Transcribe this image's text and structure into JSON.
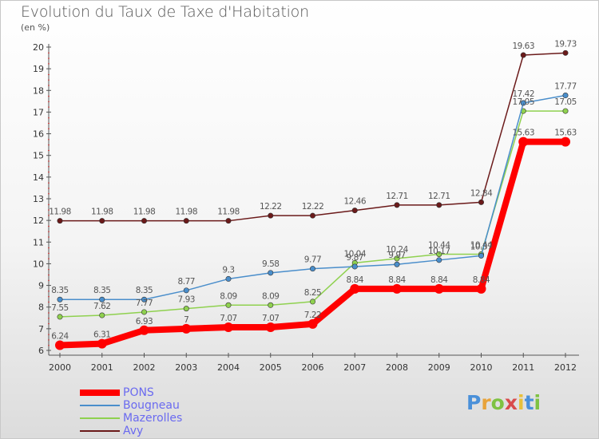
{
  "title": "Evolution du Taux de Taxe d'Habitation",
  "unit_label": "(en %)",
  "logo": {
    "letters": [
      "P",
      "r",
      "o",
      "x",
      "i",
      "t",
      "i"
    ],
    "colors": [
      "#4a90d9",
      "#e8a33b",
      "#7ec242",
      "#d84b4b",
      "#e8c03b",
      "#4a90d9",
      "#7ec242"
    ]
  },
  "chart_data": {
    "type": "line",
    "categories": [
      "2000",
      "2001",
      "2002",
      "2003",
      "2004",
      "2005",
      "2006",
      "2007",
      "2008",
      "2009",
      "2010",
      "2011",
      "2012"
    ],
    "ylim": [
      6,
      20
    ],
    "yticks": [
      6,
      7,
      8,
      9,
      10,
      11,
      12,
      13,
      14,
      15,
      16,
      17,
      18,
      19,
      20
    ],
    "ytick_labels": [
      "6",
      "7",
      "8",
      "9",
      "10",
      "11",
      "12",
      "13",
      "14",
      "15",
      "16",
      "17",
      "18",
      "19",
      "20"
    ],
    "grid": false,
    "legend_position": "bottom-left",
    "series": [
      {
        "name": "Avy",
        "color": "#6b1a1a",
        "stroke": 1.5,
        "marker": 3.2,
        "values": [
          11.98,
          11.98,
          11.98,
          11.98,
          11.98,
          12.22,
          12.22,
          12.46,
          12.71,
          12.71,
          12.84,
          19.63,
          19.73
        ],
        "labels": [
          "11.98",
          "11.98",
          "11.98",
          "11.98",
          "11.98",
          "12.22",
          "12.22",
          "12.46",
          "12.71",
          "12.71",
          "12.84",
          "19.63",
          "19.73"
        ]
      },
      {
        "name": "Mazerolles",
        "color": "#8fd14f",
        "stroke": 1.5,
        "marker": 3.2,
        "values": [
          7.55,
          7.62,
          7.77,
          7.93,
          8.09,
          8.09,
          8.25,
          10.04,
          10.24,
          10.44,
          10.44,
          17.05,
          17.05
        ],
        "labels": [
          "7.55",
          "7.62",
          "7.77",
          "7.93",
          "8.09",
          "8.09",
          "8.25",
          "10.04",
          "10.24",
          "10.44",
          "10.44",
          "17.05",
          "17.05"
        ]
      },
      {
        "name": "Bougneau",
        "color": "#4a8ecb",
        "stroke": 1.5,
        "marker": 3.2,
        "values": [
          8.35,
          8.35,
          8.35,
          8.77,
          9.3,
          9.58,
          9.77,
          9.87,
          9.97,
          10.17,
          10.37,
          17.42,
          17.77
        ],
        "labels": [
          "8.35",
          "8.35",
          "8.35",
          "8.77",
          "9.3",
          "9.58",
          "9.77",
          "9.87",
          "9.97",
          "10.17",
          "10.37",
          "17.42",
          "17.77"
        ]
      },
      {
        "name": "PONS",
        "color": "#ff0000",
        "stroke": 8,
        "marker": 6,
        "values": [
          6.24,
          6.31,
          6.93,
          7,
          7.07,
          7.07,
          7.22,
          8.84,
          8.84,
          8.84,
          8.84,
          15.63,
          15.63
        ],
        "labels": [
          "6.24",
          "6.31",
          "6.93",
          "7",
          "7.07",
          "7.07",
          "7.22",
          "8.84",
          "8.84",
          "8.84",
          "8.84",
          "15.63",
          "15.63"
        ]
      }
    ],
    "legend_order": [
      "PONS",
      "Bougneau",
      "Mazerolles",
      "Avy"
    ]
  }
}
